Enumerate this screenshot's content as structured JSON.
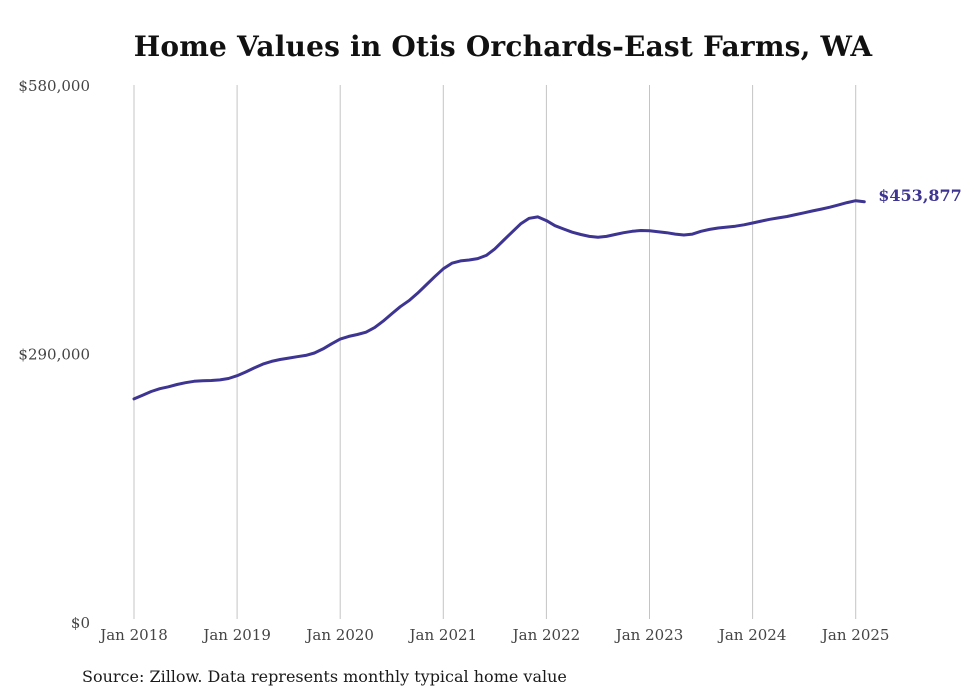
{
  "title": "Home Values in Otis Orchards-East Farms, WA",
  "source": "Source: Zillow. Data represents monthly typical home value",
  "colors": {
    "line": "#3d3591",
    "grid": "#c4c4c4",
    "axis_text": "#444444"
  },
  "chart_data": {
    "type": "line",
    "title": "Home Values in Otis Orchards-East Farms, WA",
    "xlabel": "",
    "ylabel": "",
    "ylim": [
      0,
      580000
    ],
    "y_ticks": [
      0,
      290000,
      580000
    ],
    "y_tick_labels": [
      "$0",
      "$290,000",
      "$580,000"
    ],
    "x_ticks": [
      "2018-01",
      "2019-01",
      "2020-01",
      "2021-01",
      "2022-01",
      "2023-01",
      "2024-01",
      "2025-01"
    ],
    "x_tick_labels": [
      "Jan 2018",
      "Jan 2019",
      "Jan 2020",
      "Jan 2021",
      "Jan 2022",
      "Jan 2023",
      "Jan 2024",
      "Jan 2025"
    ],
    "vertical_grid": true,
    "end_label": "$453,877",
    "series": [
      {
        "x": [
          "2018-01",
          "2018-02",
          "2018-03",
          "2018-04",
          "2018-05",
          "2018-06",
          "2018-07",
          "2018-08",
          "2018-09",
          "2018-10",
          "2018-11",
          "2018-12",
          "2019-01",
          "2019-02",
          "2019-03",
          "2019-04",
          "2019-05",
          "2019-06",
          "2019-07",
          "2019-08",
          "2019-09",
          "2019-10",
          "2019-11",
          "2019-12",
          "2020-01",
          "2020-02",
          "2020-03",
          "2020-04",
          "2020-05",
          "2020-06",
          "2020-07",
          "2020-08",
          "2020-09",
          "2020-10",
          "2020-11",
          "2020-12",
          "2021-01",
          "2021-02",
          "2021-03",
          "2021-04",
          "2021-05",
          "2021-06",
          "2021-07",
          "2021-08",
          "2021-09",
          "2021-10",
          "2021-11",
          "2021-12",
          "2022-01",
          "2022-02",
          "2022-03",
          "2022-04",
          "2022-05",
          "2022-06",
          "2022-07",
          "2022-08",
          "2022-09",
          "2022-10",
          "2022-11",
          "2022-12",
          "2023-01",
          "2023-02",
          "2023-03",
          "2023-04",
          "2023-05",
          "2023-06",
          "2023-07",
          "2023-08",
          "2023-09",
          "2023-10",
          "2023-11",
          "2023-12",
          "2024-01",
          "2024-02",
          "2024-03",
          "2024-04",
          "2024-05",
          "2024-06",
          "2024-07",
          "2024-08",
          "2024-09",
          "2024-10",
          "2024-11",
          "2024-12",
          "2025-01",
          "2025-02"
        ],
        "values": [
          241000,
          245000,
          249000,
          252000,
          254000,
          256500,
          258500,
          260000,
          260500,
          260800,
          261500,
          263000,
          266000,
          270000,
          274500,
          278500,
          281500,
          283500,
          285000,
          286500,
          288000,
          290500,
          295000,
          300500,
          305500,
          308500,
          310500,
          313000,
          318000,
          325000,
          333000,
          340500,
          347000,
          355000,
          364000,
          373000,
          381500,
          387500,
          390000,
          391000,
          392500,
          396000,
          403000,
          412000,
          421000,
          430000,
          436000,
          437500,
          433500,
          428000,
          424500,
          421000,
          418500,
          416500,
          415500,
          416500,
          418500,
          420500,
          422000,
          422800,
          422500,
          421500,
          420500,
          419000,
          418000,
          419000,
          422000,
          424000,
          425500,
          426500,
          427500,
          429000,
          431000,
          433000,
          435000,
          436500,
          438000,
          440000,
          442000,
          444000,
          446000,
          448000,
          450500,
          453000,
          455000,
          453877
        ]
      }
    ]
  }
}
